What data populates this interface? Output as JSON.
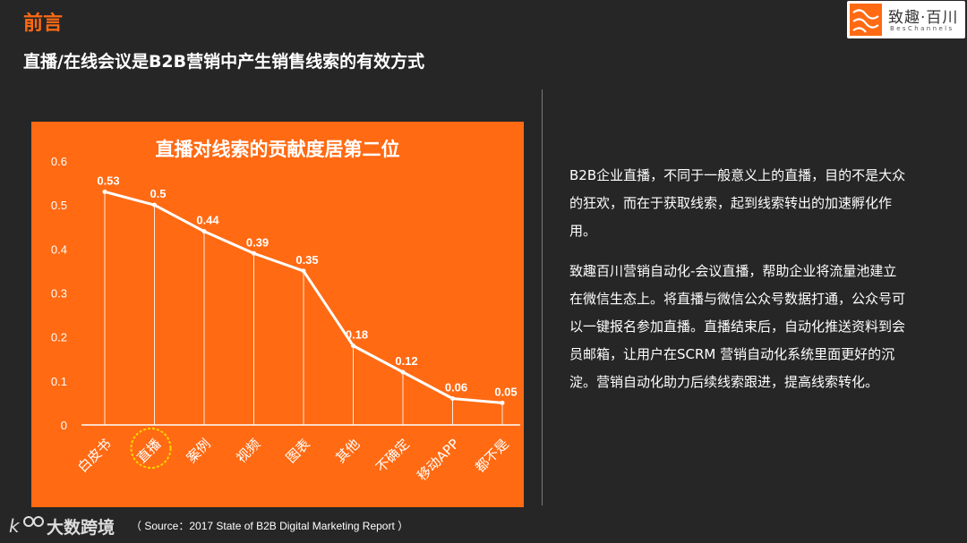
{
  "header": {
    "section": "前言",
    "headline": "直播/在线会议是B2B营销中产生销售线索的有效方式"
  },
  "logo": {
    "name_cn": "致趣·百川",
    "name_en": "BesChannels"
  },
  "chart_data": {
    "type": "line",
    "title": "直播对线索的贡献度居第二位",
    "categories": [
      "白皮书",
      "直播",
      "案例",
      "视频",
      "图表",
      "其他",
      "不确定",
      "移动APP",
      "都不是"
    ],
    "values": [
      0.53,
      0.5,
      0.44,
      0.39,
      0.35,
      0.18,
      0.12,
      0.06,
      0.05
    ],
    "value_labels": [
      "0.53",
      "0.5",
      "0.44",
      "0.39",
      "0.35",
      "0.18",
      "0.12",
      "0.06",
      "0.05"
    ],
    "yticks": [
      "0",
      "0.1",
      "0.2",
      "0.3",
      "0.4",
      "0.5",
      "0.6"
    ],
    "ylim": [
      0,
      0.6
    ],
    "highlighted_category": "直播",
    "colors": {
      "background": "#ff6a13",
      "line": "#ffffff",
      "highlight": "#ffd400"
    },
    "grid": false
  },
  "description": {
    "paragraphs": [
      "B2B企业直播，不同于一般意义上的直播，目的不是大众的狂欢，而在于获取线索，起到线索转出的加速孵化作用。",
      "致趣百川营销自动化-会议直播，帮助企业将流量池建立在微信生态上。将直播与微信公众号数据打通，公众号可以一键报名参加直播。直播结束后，自动化推送资料到会员邮箱，让用户在SCRM 营销自动化系统里面更好的沉淀。营销自动化助力后续线索跟进，提高线索转化。"
    ]
  },
  "footer": {
    "brand": "大数跨境",
    "source": "（ Source：2017 State of B2B Digital Marketing Report ）"
  }
}
